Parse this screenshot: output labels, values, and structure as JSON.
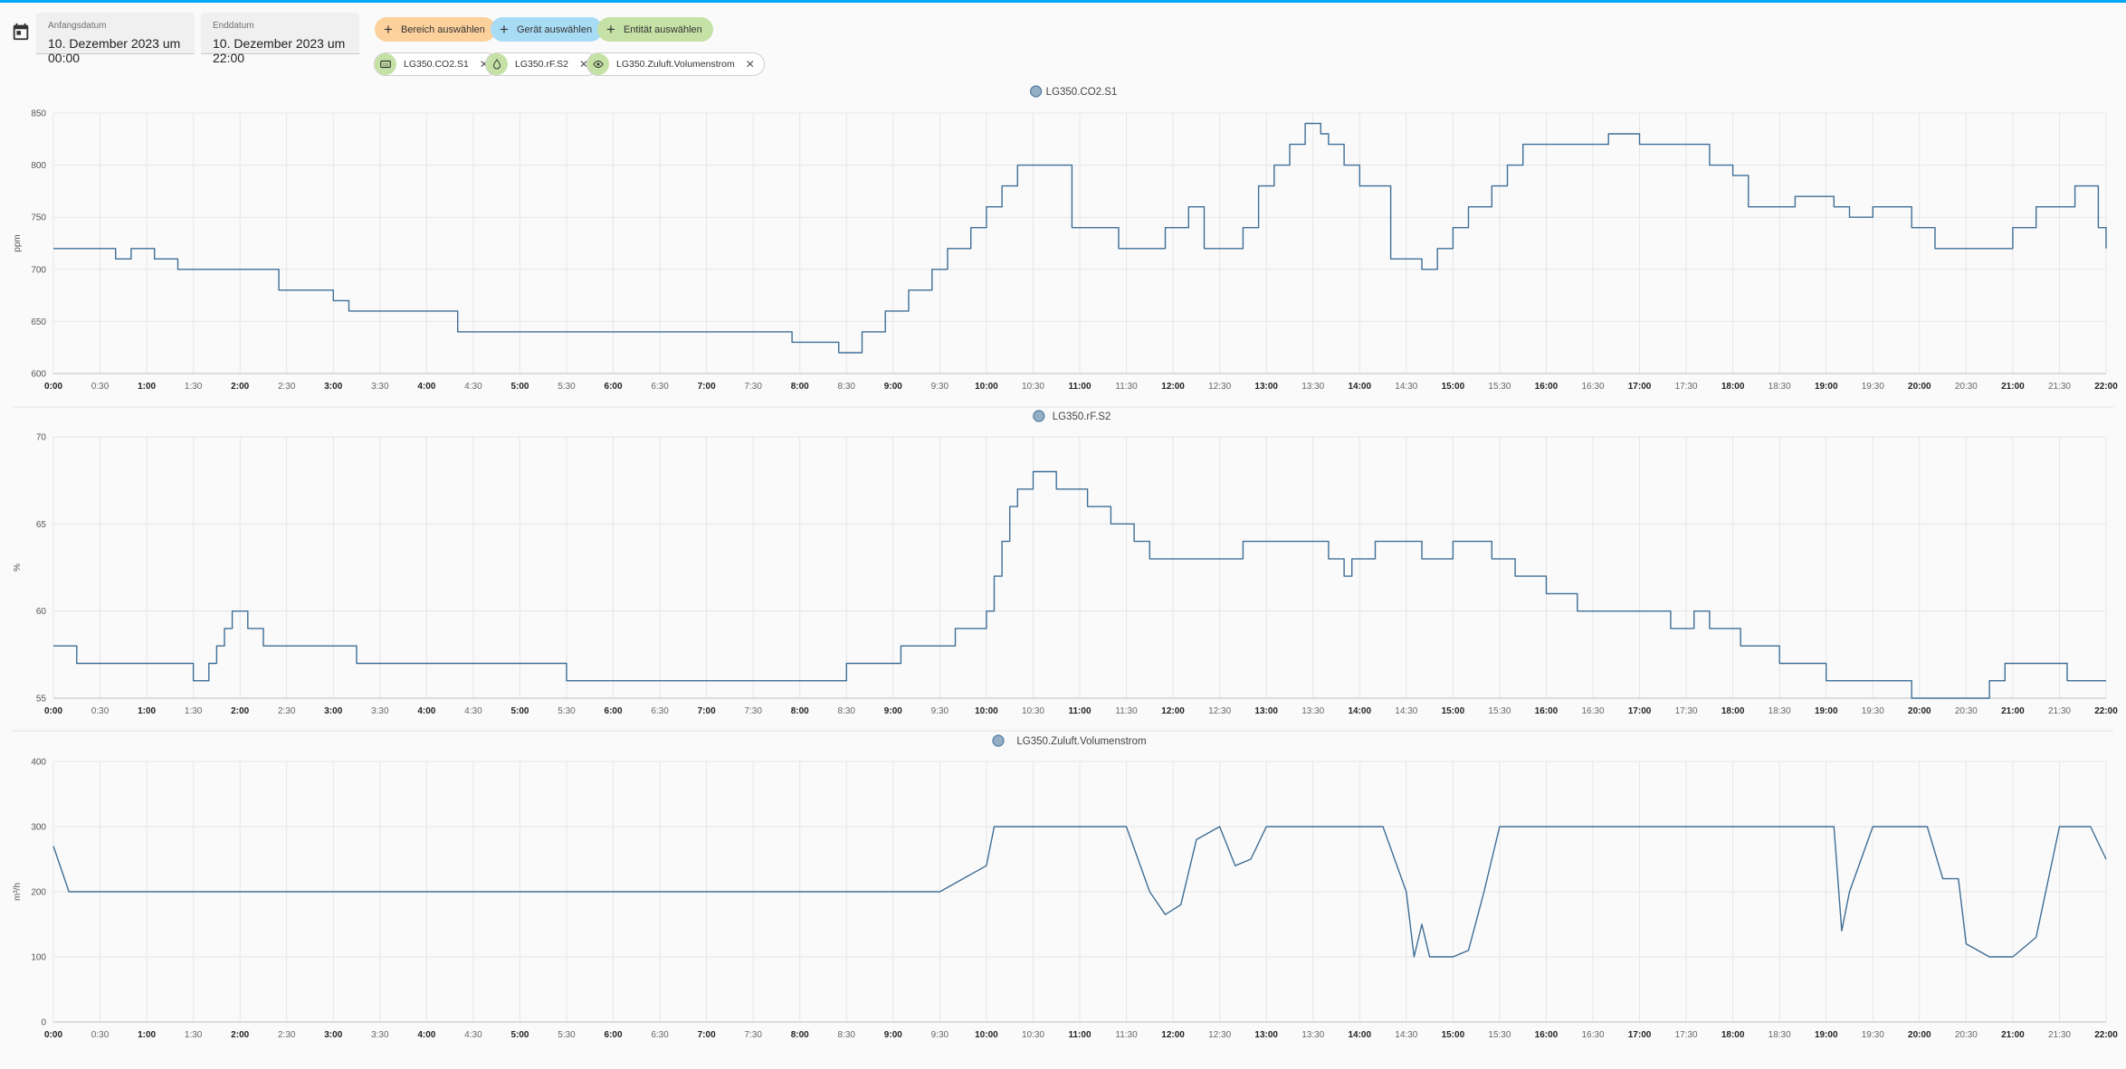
{
  "header": {
    "start_label": "Anfangsdatum",
    "start_value": "10. Dezember 2023 um 00:00",
    "end_label": "Enddatum",
    "end_value": "10. Dezember 2023 um 22:00"
  },
  "pickers": {
    "area": "Bereich auswählen",
    "device": "Gerät auswählen",
    "entity": "Entität auswählen"
  },
  "entities": [
    {
      "name": "LG350.CO2.S1",
      "icon": "co2-icon"
    },
    {
      "name": "LG350.rF.S2",
      "icon": "water-drop-icon"
    },
    {
      "name": "LG350.Zuluft.Volumenstrom",
      "icon": "eye-icon"
    }
  ],
  "colors": {
    "line": "#3f6e96",
    "area_chip": "#fcd19c",
    "device_chip": "#a8dcf5",
    "entity_chip": "#c5e1a5",
    "accent": "#03a9f4"
  },
  "chart_data": [
    {
      "type": "line",
      "title": "LG350.CO2.S1",
      "ylabel": "ppm",
      "ylim": [
        600,
        850
      ],
      "yticks": [
        600,
        650,
        700,
        750,
        800,
        850
      ],
      "xlim": [
        "0:00",
        "22:00"
      ],
      "xticks": [
        "0:00",
        "0:30",
        "1:00",
        "1:30",
        "2:00",
        "2:30",
        "3:00",
        "3:30",
        "4:00",
        "4:30",
        "5:00",
        "5:30",
        "6:00",
        "6:30",
        "7:00",
        "7:30",
        "8:00",
        "8:30",
        "9:00",
        "9:30",
        "10:00",
        "10:30",
        "11:00",
        "11:30",
        "12:00",
        "12:30",
        "13:00",
        "13:30",
        "14:00",
        "14:30",
        "15:00",
        "15:30",
        "16:00",
        "16:30",
        "17:00",
        "17:30",
        "18:00",
        "18:30",
        "19:00",
        "19:30",
        "20:00",
        "20:30",
        "21:00",
        "21:30",
        "22:00"
      ],
      "grid": true,
      "step": true,
      "series": [
        {
          "name": "LG350.CO2.S1",
          "x": [
            "0:00",
            "0:40",
            "0:50",
            "1:05",
            "1:20",
            "1:30",
            "2:25",
            "3:00",
            "3:10",
            "4:05",
            "4:20",
            "7:40",
            "7:55",
            "8:05",
            "8:25",
            "8:40",
            "8:55",
            "9:10",
            "9:15",
            "9:25",
            "9:35",
            "9:50",
            "10:00",
            "10:10",
            "10:20",
            "10:35",
            "10:55",
            "11:25",
            "11:55",
            "12:10",
            "12:20",
            "12:45",
            "12:55",
            "13:05",
            "13:15",
            "13:25",
            "13:35",
            "13:40",
            "13:50",
            "14:00",
            "14:20",
            "14:40",
            "14:50",
            "15:00",
            "15:10",
            "15:25",
            "15:35",
            "15:45",
            "16:10",
            "16:40",
            "17:00",
            "17:15",
            "17:45",
            "18:00",
            "18:10",
            "18:40",
            "19:05",
            "19:15",
            "19:30",
            "19:55",
            "20:10",
            "20:35",
            "21:00",
            "21:15",
            "21:30",
            "21:40",
            "21:55",
            "22:00"
          ],
          "y": [
            720,
            710,
            720,
            710,
            700,
            700,
            680,
            670,
            660,
            660,
            640,
            640,
            630,
            630,
            620,
            640,
            660,
            680,
            680,
            700,
            720,
            740,
            760,
            780,
            800,
            800,
            740,
            720,
            740,
            760,
            720,
            740,
            780,
            800,
            820,
            840,
            830,
            820,
            800,
            780,
            710,
            700,
            720,
            740,
            760,
            780,
            800,
            820,
            820,
            830,
            820,
            820,
            800,
            790,
            760,
            770,
            760,
            750,
            760,
            740,
            720,
            720,
            740,
            760,
            760,
            780,
            740,
            720
          ]
        }
      ]
    },
    {
      "type": "line",
      "title": "LG350.rF.S2",
      "ylabel": "%",
      "ylim": [
        55,
        70
      ],
      "yticks": [
        55,
        60,
        65,
        70
      ],
      "xlim": [
        "0:00",
        "22:00"
      ],
      "xticks": [
        "0:00",
        "0:30",
        "1:00",
        "1:30",
        "2:00",
        "2:30",
        "3:00",
        "3:30",
        "4:00",
        "4:30",
        "5:00",
        "5:30",
        "6:00",
        "6:30",
        "7:00",
        "7:30",
        "8:00",
        "8:30",
        "9:00",
        "9:30",
        "10:00",
        "10:30",
        "11:00",
        "11:30",
        "12:00",
        "12:30",
        "13:00",
        "13:30",
        "14:00",
        "14:30",
        "15:00",
        "15:30",
        "16:00",
        "16:30",
        "17:00",
        "17:30",
        "18:00",
        "18:30",
        "19:00",
        "19:30",
        "20:00",
        "20:30",
        "21:00",
        "21:30",
        "22:00"
      ],
      "grid": true,
      "step": true,
      "series": [
        {
          "name": "LG350.rF.S2",
          "x": [
            "0:00",
            "0:15",
            "0:25",
            "1:30",
            "1:40",
            "1:45",
            "1:50",
            "1:55",
            "2:00",
            "2:05",
            "2:15",
            "3:15",
            "3:25",
            "5:20",
            "5:30",
            "5:40",
            "8:30",
            "8:35",
            "9:05",
            "9:30",
            "9:40",
            "10:00",
            "10:05",
            "10:10",
            "10:15",
            "10:20",
            "10:30",
            "10:45",
            "11:05",
            "11:20",
            "11:35",
            "11:45",
            "12:45",
            "13:20",
            "13:40",
            "13:50",
            "13:55",
            "14:10",
            "14:40",
            "14:50",
            "15:00",
            "15:25",
            "15:40",
            "16:00",
            "16:20",
            "17:20",
            "17:35",
            "17:45",
            "18:05",
            "18:25",
            "18:30",
            "18:50",
            "19:00",
            "19:55",
            "20:45",
            "20:55",
            "21:25",
            "21:35",
            "21:45",
            "22:00"
          ],
          "y": [
            58,
            57,
            57,
            56,
            57,
            58,
            59,
            60,
            60,
            59,
            58,
            57,
            57,
            57,
            56,
            56,
            57,
            57,
            58,
            58,
            59,
            60,
            62,
            64,
            66,
            67,
            68,
            67,
            66,
            65,
            64,
            63,
            64,
            64,
            63,
            62,
            63,
            64,
            63,
            63,
            64,
            63,
            62,
            61,
            60,
            59,
            60,
            59,
            58,
            58,
            57,
            57,
            56,
            55,
            56,
            57,
            57,
            56,
            56,
            56
          ]
        }
      ]
    },
    {
      "type": "line",
      "title": "LG350.Zuluft.Volumenstrom",
      "ylabel": "m³/h",
      "ylim": [
        0,
        400
      ],
      "yticks": [
        0,
        100,
        200,
        300,
        400
      ],
      "xlim": [
        "0:00",
        "22:00"
      ],
      "xticks": [
        "0:00",
        "0:30",
        "1:00",
        "1:30",
        "2:00",
        "2:30",
        "3:00",
        "3:30",
        "4:00",
        "4:30",
        "5:00",
        "5:30",
        "6:00",
        "6:30",
        "7:00",
        "7:30",
        "8:00",
        "8:30",
        "9:00",
        "9:30",
        "10:00",
        "10:30",
        "11:00",
        "11:30",
        "12:00",
        "12:30",
        "13:00",
        "13:30",
        "14:00",
        "14:30",
        "15:00",
        "15:30",
        "16:00",
        "16:30",
        "17:00",
        "17:30",
        "18:00",
        "18:30",
        "19:00",
        "19:30",
        "20:00",
        "20:30",
        "21:00",
        "21:30",
        "22:00"
      ],
      "grid": true,
      "step": false,
      "series": [
        {
          "name": "LG350.Zuluft.Volumenstrom",
          "x": [
            "0:00",
            "0:10",
            "9:30",
            "9:45",
            "10:00",
            "10:05",
            "10:30",
            "11:30",
            "11:45",
            "11:55",
            "12:05",
            "12:15",
            "12:30",
            "12:40",
            "12:50",
            "13:00",
            "13:30",
            "14:15",
            "14:30",
            "14:35",
            "14:40",
            "14:45",
            "14:50",
            "15:00",
            "15:10",
            "15:20",
            "15:30",
            "19:05",
            "19:10",
            "19:15",
            "19:30",
            "20:05",
            "20:15",
            "20:25",
            "20:30",
            "20:45",
            "21:00",
            "21:15",
            "21:30",
            "21:50",
            "22:00"
          ],
          "y": [
            270,
            200,
            200,
            220,
            240,
            300,
            300,
            300,
            200,
            165,
            180,
            280,
            300,
            240,
            250,
            300,
            300,
            300,
            200,
            100,
            150,
            100,
            100,
            100,
            110,
            200,
            300,
            300,
            140,
            200,
            300,
            300,
            220,
            220,
            120,
            100,
            100,
            130,
            300,
            300,
            250
          ]
        }
      ]
    }
  ]
}
